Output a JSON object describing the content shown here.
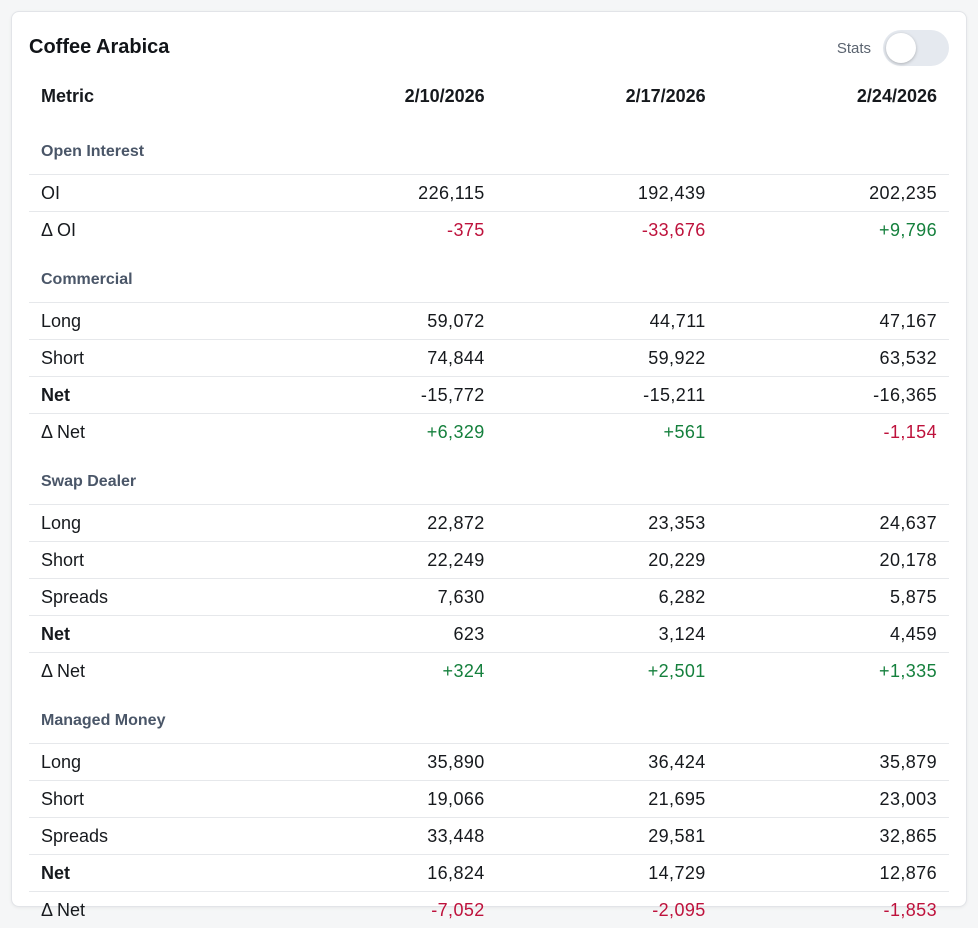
{
  "card": {
    "title": "Coffee Arabica",
    "stats_label": "Stats",
    "stats_enabled": false
  },
  "table": {
    "headers": [
      "Metric",
      "2/10/2026",
      "2/17/2026",
      "2/24/2026"
    ],
    "sections": [
      {
        "name": "Open Interest",
        "rows": [
          {
            "label": "OI",
            "values": [
              "226,115",
              "192,439",
              "202,235"
            ],
            "bold": false,
            "delta": false
          },
          {
            "label": "Δ OI",
            "values": [
              "-375",
              "-33,676",
              "+9,796"
            ],
            "bold": false,
            "delta": true
          }
        ]
      },
      {
        "name": "Commercial",
        "rows": [
          {
            "label": "Long",
            "values": [
              "59,072",
              "44,711",
              "47,167"
            ],
            "bold": false,
            "delta": false
          },
          {
            "label": "Short",
            "values": [
              "74,844",
              "59,922",
              "63,532"
            ],
            "bold": false,
            "delta": false
          },
          {
            "label": "Net",
            "values": [
              "-15,772",
              "-15,211",
              "-16,365"
            ],
            "bold": true,
            "delta": false
          },
          {
            "label": "Δ Net",
            "values": [
              "+6,329",
              "+561",
              "-1,154"
            ],
            "bold": false,
            "delta": true
          }
        ]
      },
      {
        "name": "Swap Dealer",
        "rows": [
          {
            "label": "Long",
            "values": [
              "22,872",
              "23,353",
              "24,637"
            ],
            "bold": false,
            "delta": false
          },
          {
            "label": "Short",
            "values": [
              "22,249",
              "20,229",
              "20,178"
            ],
            "bold": false,
            "delta": false
          },
          {
            "label": "Spreads",
            "values": [
              "7,630",
              "6,282",
              "5,875"
            ],
            "bold": false,
            "delta": false
          },
          {
            "label": "Net",
            "values": [
              "623",
              "3,124",
              "4,459"
            ],
            "bold": true,
            "delta": false
          },
          {
            "label": "Δ Net",
            "values": [
              "+324",
              "+2,501",
              "+1,335"
            ],
            "bold": false,
            "delta": true
          }
        ]
      },
      {
        "name": "Managed Money",
        "rows": [
          {
            "label": "Long",
            "values": [
              "35,890",
              "36,424",
              "35,879"
            ],
            "bold": false,
            "delta": false
          },
          {
            "label": "Short",
            "values": [
              "19,066",
              "21,695",
              "23,003"
            ],
            "bold": false,
            "delta": false
          },
          {
            "label": "Spreads",
            "values": [
              "33,448",
              "29,581",
              "32,865"
            ],
            "bold": false,
            "delta": false
          },
          {
            "label": "Net",
            "values": [
              "16,824",
              "14,729",
              "12,876"
            ],
            "bold": true,
            "delta": false
          },
          {
            "label": "Δ Net",
            "values": [
              "-7,052",
              "-2,095",
              "-1,853"
            ],
            "bold": false,
            "delta": true
          }
        ]
      }
    ]
  },
  "colors": {
    "negative": "#be123c",
    "positive": "#15803d",
    "section_label": "#4a5668"
  }
}
